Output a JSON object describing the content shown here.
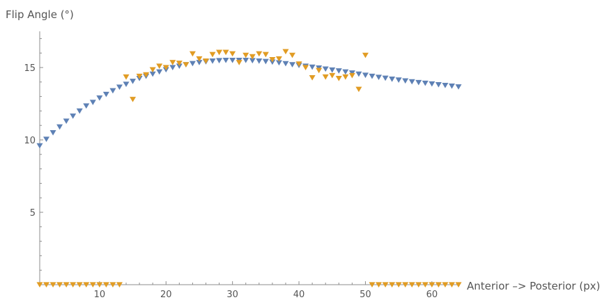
{
  "chart_data": {
    "type": "scatter",
    "title": "",
    "xlabel": "Anterior –> Posterior (px)",
    "ylabel": "Flip Angle (°)",
    "xlim": [
      1,
      64
    ],
    "ylim": [
      0,
      17.5
    ],
    "x_ticks": [
      10,
      20,
      30,
      40,
      50,
      60
    ],
    "y_ticks": [
      5,
      10,
      15
    ],
    "grid": false,
    "legend": "none",
    "marker": "triangle-down",
    "series": [
      {
        "color": "#5e81b5",
        "x": [
          1,
          2,
          3,
          4,
          5,
          6,
          7,
          8,
          9,
          10,
          11,
          12,
          13,
          14,
          15,
          16,
          17,
          18,
          19,
          20,
          21,
          22,
          23,
          24,
          25,
          26,
          27,
          28,
          29,
          30,
          31,
          32,
          33,
          34,
          35,
          36,
          37,
          38,
          39,
          40,
          41,
          42,
          43,
          44,
          45,
          46,
          47,
          48,
          49,
          50,
          51,
          52,
          53,
          54,
          55,
          56,
          57,
          58,
          59,
          60,
          61,
          62,
          63,
          64
        ],
        "y": [
          9.6,
          10.05,
          10.5,
          10.9,
          11.3,
          11.65,
          12.0,
          12.35,
          12.6,
          12.9,
          13.15,
          13.4,
          13.65,
          13.85,
          14.05,
          14.25,
          14.4,
          14.55,
          14.7,
          14.85,
          15.0,
          15.1,
          15.2,
          15.28,
          15.35,
          15.4,
          15.45,
          15.48,
          15.5,
          15.5,
          15.5,
          15.5,
          15.48,
          15.45,
          15.42,
          15.38,
          15.33,
          15.27,
          15.2,
          15.15,
          15.1,
          15.03,
          14.97,
          14.9,
          14.83,
          14.77,
          14.7,
          14.63,
          14.55,
          14.47,
          14.4,
          14.33,
          14.27,
          14.2,
          14.14,
          14.08,
          14.02,
          13.97,
          13.92,
          13.87,
          13.82,
          13.77,
          13.72,
          13.67
        ]
      },
      {
        "color": "#e19c24",
        "x": [
          1,
          2,
          3,
          4,
          5,
          6,
          7,
          8,
          9,
          10,
          11,
          12,
          13,
          14,
          15,
          16,
          17,
          18,
          19,
          20,
          21,
          22,
          23,
          24,
          25,
          26,
          27,
          28,
          29,
          30,
          31,
          32,
          33,
          34,
          35,
          36,
          37,
          38,
          39,
          40,
          41,
          42,
          43,
          44,
          45,
          46,
          47,
          48,
          49,
          50,
          51,
          52,
          53,
          54,
          55,
          56,
          57,
          58,
          59,
          60,
          61,
          62,
          63,
          64
        ],
        "y": [
          0,
          0,
          0,
          0,
          0,
          0,
          0,
          0,
          0,
          0,
          0,
          0,
          0,
          14.35,
          12.8,
          14.4,
          14.5,
          14.85,
          15.1,
          15.0,
          15.35,
          15.3,
          15.2,
          15.95,
          15.6,
          15.45,
          15.9,
          16.05,
          16.05,
          15.95,
          15.35,
          15.85,
          15.75,
          15.95,
          15.9,
          15.55,
          15.6,
          16.1,
          15.85,
          15.25,
          15.0,
          14.3,
          14.8,
          14.35,
          14.45,
          14.25,
          14.35,
          14.45,
          13.5,
          15.85,
          0,
          0,
          0,
          0,
          0,
          0,
          0,
          0,
          0,
          0,
          0,
          0,
          0,
          0
        ]
      }
    ]
  }
}
